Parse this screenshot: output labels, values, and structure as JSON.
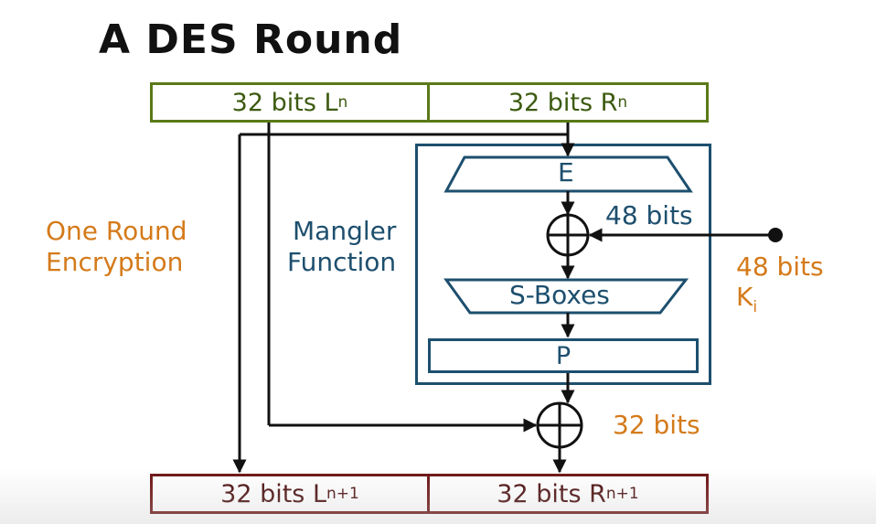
{
  "title": "A DES Round",
  "input": {
    "left_label": "32 bits L",
    "left_sub": "n",
    "right_label": "32 bits R",
    "right_sub": "n"
  },
  "output": {
    "left_label": "32 bits L",
    "left_sub": "n+1",
    "right_label": "32 bits R",
    "right_sub": "n+1"
  },
  "side_label": {
    "line1": "One Round",
    "line2": "Encryption"
  },
  "mangler_label": {
    "line1": "Mangler",
    "line2": "Function"
  },
  "expansion_label": "E",
  "sboxes_label": "S-Boxes",
  "permutation_label": "P",
  "inner_xor_bits": "48 bits",
  "key": {
    "bits": "48 bits",
    "name": "K",
    "sub": "i"
  },
  "outer_xor_bits": "32 bits",
  "colors": {
    "input_border": "#5a7a18",
    "output_border": "#6d1414",
    "mangler_border": "#1d4f6e",
    "annotation": "#d47a1a"
  }
}
